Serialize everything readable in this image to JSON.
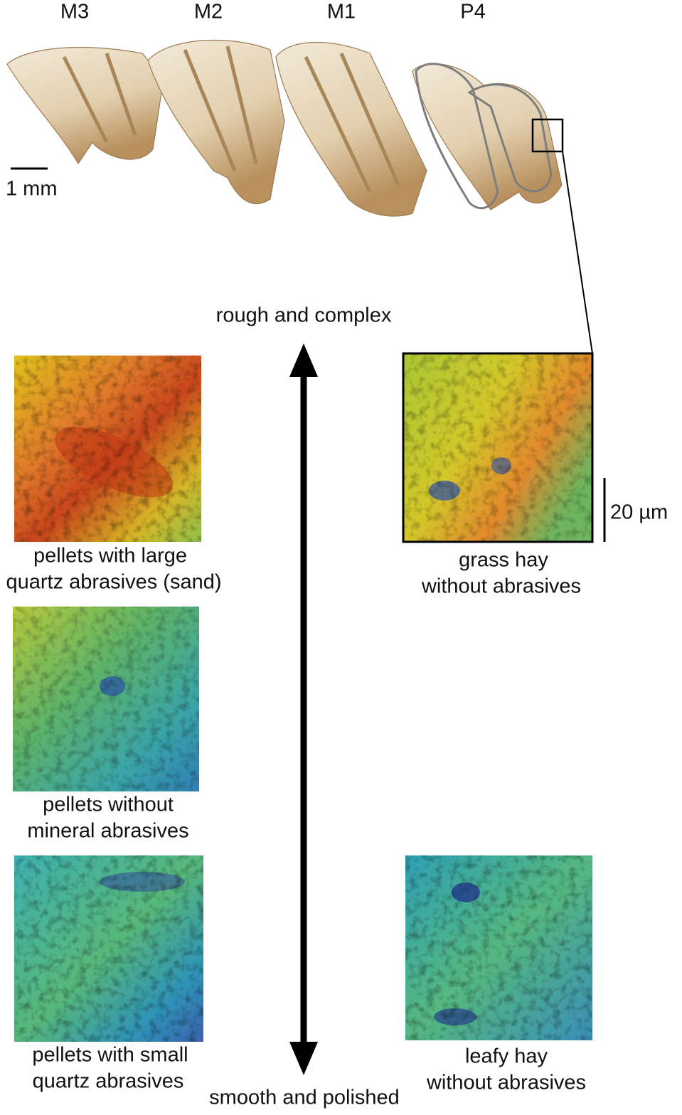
{
  "teeth_labels": [
    "M3",
    "M2",
    "M1",
    "P4"
  ],
  "scale_bar_mm": "1 mm",
  "scale_bar_um": "20 µm",
  "axis": {
    "top": "rough and complex",
    "bottom": "smooth and polished"
  },
  "panels": [
    {
      "caption": [
        "pellets with large",
        "quartz abrasives (sand)"
      ]
    },
    {
      "caption": [
        "pellets without",
        "mineral abrasives"
      ]
    },
    {
      "caption": [
        "pellets with small",
        "quartz abrasives"
      ]
    },
    {
      "caption": [
        "grass hay",
        "without abrasives"
      ]
    },
    {
      "caption": [
        "leafy hay",
        "without abrasives"
      ]
    }
  ]
}
